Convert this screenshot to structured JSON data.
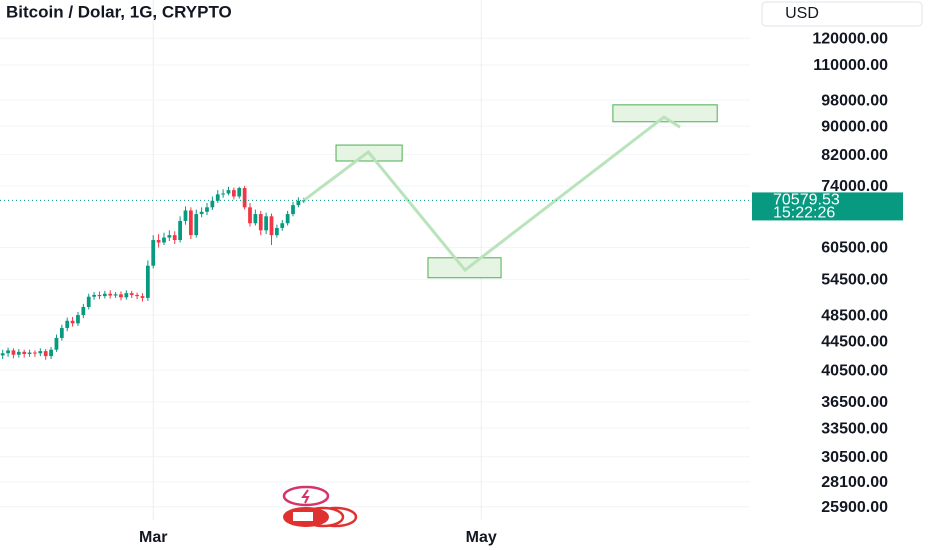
{
  "chart_data": {
    "type": "candlestick",
    "title": "Bitcoin / Dolar, 1G, CRYPTO",
    "currency": "USD",
    "log_scale": true,
    "grid": true,
    "up_color": "#089981",
    "down_color": "#f23645",
    "xlim": [
      -0.5,
      139
    ],
    "xticks": [
      {
        "value": 28,
        "label": "Mar"
      },
      {
        "value": 89,
        "label": "May"
      }
    ],
    "ylim": [
      24800,
      136000
    ],
    "yticks": [
      {
        "value": 120000,
        "label": "120000.00"
      },
      {
        "value": 110000,
        "label": "110000.00"
      },
      {
        "value": 98000,
        "label": "98000.00"
      },
      {
        "value": 90000,
        "label": "90000.00"
      },
      {
        "value": 82000,
        "label": "82000.00"
      },
      {
        "value": 74000,
        "label": "74000.00"
      },
      {
        "value": 60500,
        "label": "60500.00"
      },
      {
        "value": 54500,
        "label": "54500.00"
      },
      {
        "value": 48500,
        "label": "48500.00"
      },
      {
        "value": 44500,
        "label": "44500.00"
      },
      {
        "value": 40500,
        "label": "40500.00"
      },
      {
        "value": 36500,
        "label": "36500.00"
      },
      {
        "value": 33500,
        "label": "33500.00"
      },
      {
        "value": 30500,
        "label": "30500.00"
      },
      {
        "value": 28100,
        "label": "28100.00"
      },
      {
        "value": 25900,
        "label": "25900.00"
      }
    ],
    "last_price": 70579.53,
    "countdown": "15:22:26",
    "x": [
      0,
      1,
      2,
      3,
      4,
      5,
      6,
      7,
      8,
      9,
      10,
      11,
      12,
      13,
      14,
      15,
      16,
      17,
      18,
      19,
      20,
      21,
      22,
      23,
      24,
      25,
      26,
      27,
      28,
      29,
      30,
      31,
      32,
      33,
      34,
      35,
      36,
      37,
      38,
      39,
      40,
      41,
      42,
      43,
      44,
      45,
      46,
      47,
      48,
      49,
      50,
      51,
      52,
      53,
      54,
      55,
      56
    ],
    "open": [
      42500,
      42800,
      43200,
      42600,
      43000,
      42700,
      42900,
      42800,
      43100,
      42400,
      43300,
      45000,
      46500,
      47600,
      47200,
      48500,
      49800,
      51500,
      51800,
      51600,
      52000,
      51700,
      51900,
      51400,
      52100,
      51800,
      51600,
      51300,
      57000,
      62000,
      61500,
      62500,
      63000,
      62000,
      66000,
      68300,
      63000,
      67500,
      68000,
      69000,
      70500,
      72000,
      72200,
      73000,
      71500,
      73500,
      69000,
      65500,
      67500,
      64000,
      67000,
      63000,
      64500,
      65500,
      67500,
      69500,
      70500
    ],
    "high": [
      43300,
      43600,
      43500,
      43400,
      43300,
      43300,
      43200,
      43500,
      43400,
      43700,
      45500,
      47000,
      48100,
      48200,
      49000,
      50300,
      52000,
      52300,
      52400,
      52500,
      52600,
      52300,
      52400,
      52600,
      52500,
      52200,
      52100,
      58000,
      63000,
      63200,
      63500,
      64000,
      63800,
      67000,
      69200,
      69000,
      68500,
      69000,
      70000,
      71500,
      73000,
      73200,
      73800,
      73600,
      73800,
      74000,
      70000,
      68500,
      68200,
      67800,
      67600,
      65200,
      66200,
      68200,
      70300,
      71300,
      71200
    ],
    "low": [
      42000,
      42300,
      42100,
      42200,
      42200,
      42300,
      42300,
      42400,
      41900,
      42000,
      43000,
      44600,
      46000,
      46700,
      46800,
      48000,
      49400,
      51000,
      51100,
      51200,
      51200,
      51300,
      50900,
      51000,
      51300,
      51100,
      50700,
      50800,
      56500,
      60500,
      61000,
      61800,
      61200,
      61500,
      65200,
      62200,
      62500,
      66800,
      67300,
      68400,
      70000,
      71200,
      71800,
      70800,
      71000,
      68500,
      64800,
      65000,
      63000,
      63200,
      61000,
      62500,
      63900,
      65000,
      67000,
      69000,
      70000
    ],
    "close": [
      42800,
      43200,
      42600,
      43000,
      42700,
      42900,
      42800,
      43100,
      42400,
      43300,
      45000,
      46500,
      47600,
      47200,
      48500,
      49800,
      51500,
      51800,
      51600,
      52000,
      51700,
      51900,
      51400,
      52100,
      51800,
      51600,
      51300,
      57000,
      62000,
      61500,
      62500,
      63000,
      62000,
      66000,
      68300,
      63000,
      67500,
      68000,
      69000,
      70500,
      72000,
      72200,
      73000,
      71500,
      73500,
      69000,
      65500,
      67500,
      64000,
      67000,
      63000,
      64500,
      65500,
      67500,
      69500,
      70500,
      70580
    ],
    "projection": {
      "color": "#b9e3bb",
      "x": [
        56,
        68,
        86,
        123,
        126
      ],
      "y": [
        70580,
        82700,
        56200,
        92700,
        89700
      ]
    },
    "zones": [
      {
        "x0": 62,
        "x1": 74.3,
        "y0": 80300,
        "y1": 84600
      },
      {
        "x0": 79.1,
        "x1": 92.7,
        "y0": 54800,
        "y1": 58500
      },
      {
        "x0": 113.5,
        "x1": 132.9,
        "y0": 91300,
        "y1": 96500
      }
    ]
  }
}
